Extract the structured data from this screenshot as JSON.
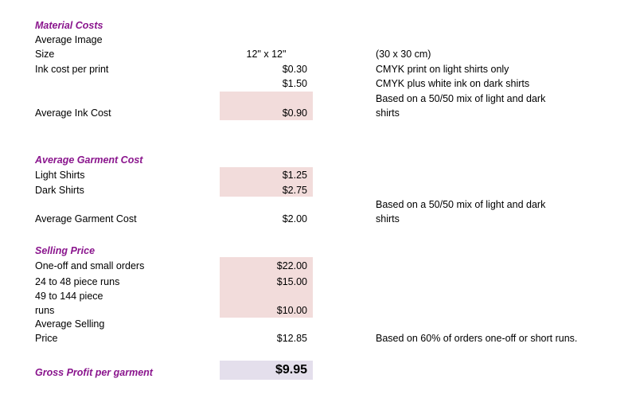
{
  "material": {
    "title": "Material Costs",
    "avg_image_line1": "Average Image",
    "avg_image_line2": "Size",
    "avg_image_value": "12\" x 12\"",
    "avg_image_note": "(30 x 30 cm)",
    "ink_label": "Ink cost per print",
    "ink_light_value": "$0.30",
    "ink_light_note": "CMYK print on light shirts only",
    "ink_dark_value": "$1.50",
    "ink_dark_note": "CMYK plus white ink on dark shirts",
    "avg_ink_label": "Average Ink Cost",
    "avg_ink_value": "$0.90",
    "avg_ink_note_line1": "Based on a 50/50 mix of light and dark",
    "avg_ink_note_line2": "shirts"
  },
  "garment": {
    "title": "Average Garment Cost",
    "light_label": "Light Shirts",
    "light_value": "$1.25",
    "dark_label": "Dark Shirts",
    "dark_value": "$2.75",
    "avg_label": "Average Garment Cost",
    "avg_value": "$2.00",
    "note_line1": "Based on a 50/50 mix of light and dark",
    "note_line2": "shirts"
  },
  "selling": {
    "title": "Selling Price",
    "oneoff_label": "One-off and small orders",
    "oneoff_value": "$22.00",
    "run24_label": "24 to 48 piece runs",
    "run24_value": "$15.00",
    "run49_line1": "49 to 144 piece",
    "run49_line2": "runs",
    "run49_value": "$10.00",
    "avg_line1": "Average Selling",
    "avg_line2": "Price",
    "avg_value": "$12.85",
    "avg_note": "Based on 60% of orders one-off or short runs."
  },
  "profit": {
    "label": "Gross Profit per garment",
    "value": "$9.95"
  },
  "colors": {
    "header": "#8a158d",
    "input_shade": "#f2dcdb",
    "profit_shade": "#e4dfec"
  }
}
